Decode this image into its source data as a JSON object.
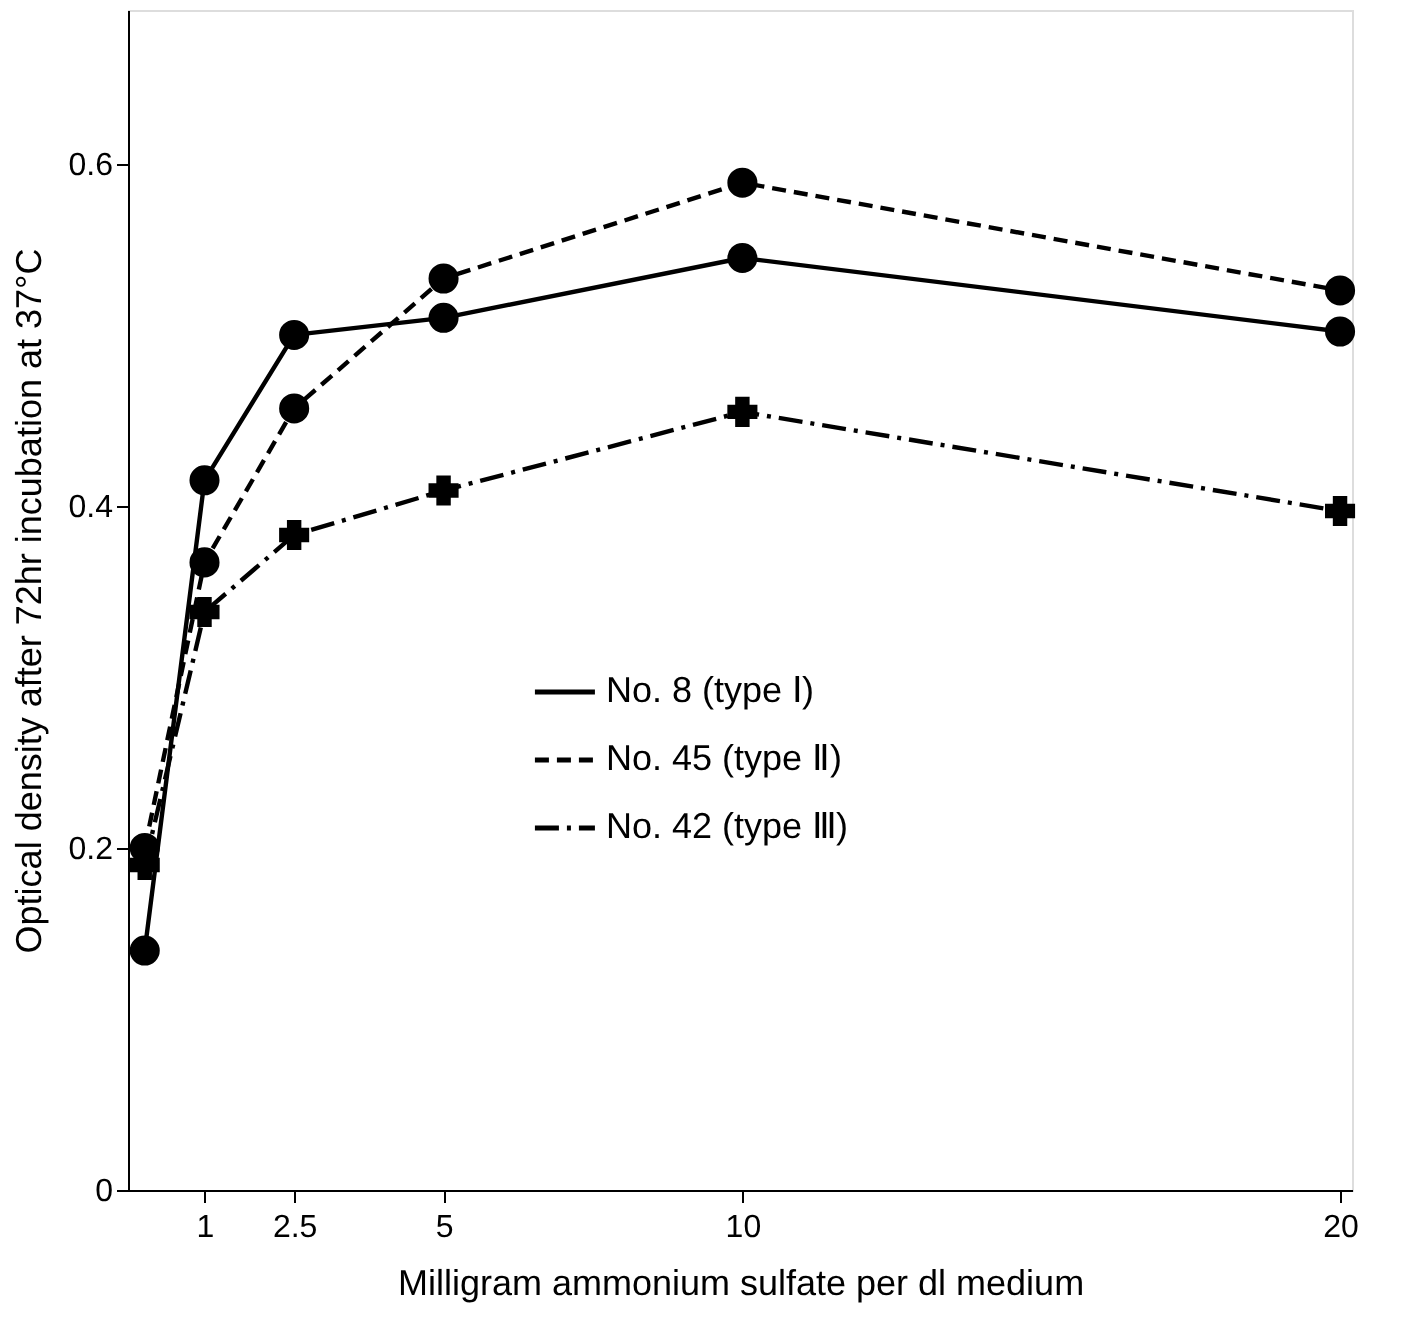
{
  "chart_data": {
    "type": "line",
    "xlabel": "Milligram ammonium sulfate per dl medium",
    "ylabel": "Optical density after 72hr incubation at 37°C",
    "x": [
      0,
      1,
      2.5,
      5,
      10,
      20
    ],
    "series": [
      {
        "name": "No.  8 (type Ⅰ)",
        "color": "#000000",
        "marker": "circle",
        "line_style": "solid",
        "values": [
          0.14,
          0.415,
          0.5,
          0.51,
          0.545,
          0.502
        ]
      },
      {
        "name": "No. 45 (type Ⅱ)",
        "color": "#000000",
        "marker": "circle",
        "line_style": "dashed",
        "values": [
          0.2,
          0.367,
          0.457,
          0.533,
          0.589,
          0.526
        ]
      },
      {
        "name": "No. 42 (type Ⅲ)",
        "color": "#000000",
        "marker": "cross",
        "line_style": "dashdot",
        "values": [
          0.19,
          0.338,
          0.383,
          0.409,
          0.455,
          0.397
        ]
      }
    ],
    "xlim": [
      -0.28,
      20.2
    ],
    "xticks": [
      1,
      2.5,
      5,
      10,
      20
    ],
    "ylim": [
      0,
      0.69
    ],
    "yticks": [
      0,
      0.2,
      0.4,
      0.6
    ],
    "grid": false,
    "legend": "center"
  }
}
